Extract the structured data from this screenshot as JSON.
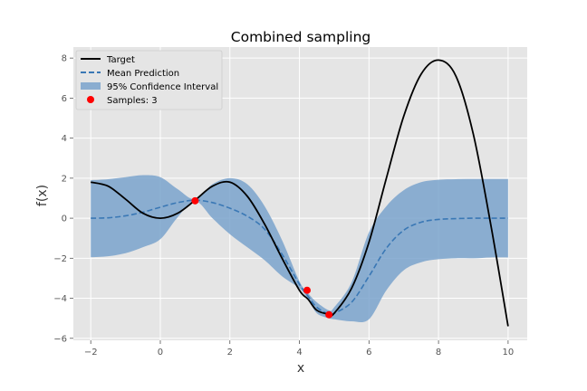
{
  "chart_data": {
    "type": "line",
    "title": "Combined sampling",
    "xlabel": "x",
    "ylabel": "f(x)",
    "xlim": [
      -2.5,
      10.55
    ],
    "ylim": [
      -6.1,
      8.55
    ],
    "xticks": [
      -2,
      0,
      2,
      4,
      6,
      8,
      10
    ],
    "yticks": [
      -6,
      -4,
      -2,
      0,
      2,
      4,
      6,
      8
    ],
    "grid": true,
    "legend_position": "top-left",
    "legend": [
      {
        "label": "Target",
        "kind": "line",
        "color": "#000000",
        "style": "solid"
      },
      {
        "label": "Mean Prediction",
        "kind": "line",
        "color": "#3a78b5",
        "style": "dashed"
      },
      {
        "label": "95% Confidence Interval",
        "kind": "band",
        "color": "#7aa3cc"
      },
      {
        "label": "Samples: 3",
        "kind": "marker",
        "color": "#ff0000"
      }
    ],
    "series": [
      {
        "name": "Target",
        "x": [
          -2,
          -1.5,
          -1,
          -0.5,
          0,
          0.5,
          1,
          1.5,
          2,
          2.5,
          3,
          3.5,
          4,
          4.25,
          4.5,
          4.85,
          5,
          5.5,
          6,
          6.5,
          7,
          7.5,
          8,
          8.5,
          9,
          9.5,
          10
        ],
        "y": [
          1.8,
          1.6,
          0.95,
          0.25,
          0,
          0.25,
          0.9,
          1.6,
          1.8,
          1.1,
          -0.3,
          -2,
          -3.6,
          -4.05,
          -4.6,
          -4.8,
          -4.75,
          -3.5,
          -1.2,
          2,
          5.1,
          7.2,
          7.9,
          7.1,
          4.2,
          -0.3,
          -5.4
        ]
      },
      {
        "name": "Mean Prediction",
        "x": [
          -2,
          -1.5,
          -1,
          -0.5,
          0,
          0.5,
          1,
          1.5,
          2,
          2.5,
          3,
          3.5,
          4,
          4.25,
          4.5,
          4.85,
          5,
          5.5,
          6,
          6.5,
          7,
          7.5,
          8,
          8.5,
          9,
          9.5,
          10
        ],
        "y": [
          0,
          0.02,
          0.12,
          0.3,
          0.55,
          0.78,
          0.9,
          0.78,
          0.5,
          0.1,
          -0.55,
          -1.8,
          -3.3,
          -3.9,
          -4.45,
          -4.8,
          -4.75,
          -4.2,
          -2.9,
          -1.5,
          -0.6,
          -0.2,
          -0.06,
          -0.02,
          0,
          0,
          0
        ]
      }
    ],
    "confidence_interval": {
      "x": [
        -2,
        -1.5,
        -1,
        -0.5,
        0,
        0.5,
        1,
        1.5,
        2,
        2.5,
        3,
        3.5,
        4,
        4.25,
        4.5,
        4.85,
        5,
        5.5,
        6,
        6.5,
        7,
        7.5,
        8,
        8.5,
        9,
        9.5,
        10
      ],
      "upper": [
        1.9,
        1.95,
        2.05,
        2.15,
        2.05,
        1.45,
        0.95,
        1.7,
        2.0,
        1.7,
        0.6,
        -1.1,
        -3.15,
        -3.75,
        -4.2,
        -4.6,
        -4.45,
        -3.2,
        -0.7,
        0.6,
        1.4,
        1.8,
        1.92,
        1.95,
        1.96,
        1.96,
        1.96
      ],
      "lower": [
        -1.95,
        -1.9,
        -1.75,
        -1.45,
        -1.05,
        0.05,
        0.85,
        0.0,
        -0.8,
        -1.45,
        -2.1,
        -2.9,
        -3.5,
        -4.05,
        -4.75,
        -5.0,
        -5.05,
        -5.15,
        -5.05,
        -3.6,
        -2.6,
        -2.2,
        -2.05,
        -2.0,
        -2.0,
        -1.96,
        -1.96
      ]
    },
    "samples": {
      "x": [
        1.0,
        4.22,
        4.85
      ],
      "y": [
        0.87,
        -3.6,
        -4.82
      ]
    }
  }
}
